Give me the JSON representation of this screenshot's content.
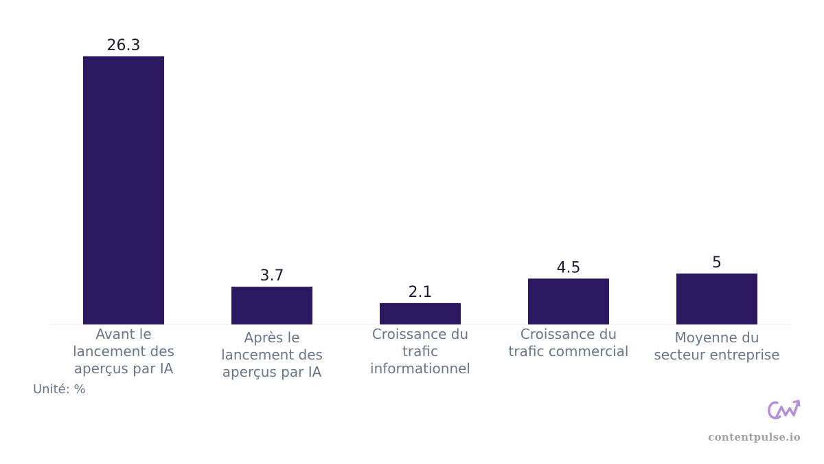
{
  "chart_data": {
    "type": "bar",
    "categories": [
      [
        "Avant le",
        "lancement des",
        "aperçus par IA"
      ],
      [
        "Après le",
        "lancement des",
        "aperçus par IA"
      ],
      [
        "Croissance du",
        "trafic",
        "informationnel"
      ],
      [
        "Croissance du",
        "trafic commercial"
      ],
      [
        "Moyenne du",
        "secteur entreprise"
      ]
    ],
    "values": [
      26.3,
      3.7,
      2.1,
      4.5,
      5
    ],
    "value_labels": [
      "26.3",
      "3.7",
      "2.1",
      "4.5",
      "5"
    ],
    "ylim": [
      0,
      26.3
    ],
    "bar_color": "#2c1860",
    "grid": false,
    "unit_label": "Unité: %"
  },
  "branding": {
    "site": "contentpulse.io",
    "logo_icon": "cw-chart-logo-icon",
    "logo_color": "#b48fd8"
  }
}
